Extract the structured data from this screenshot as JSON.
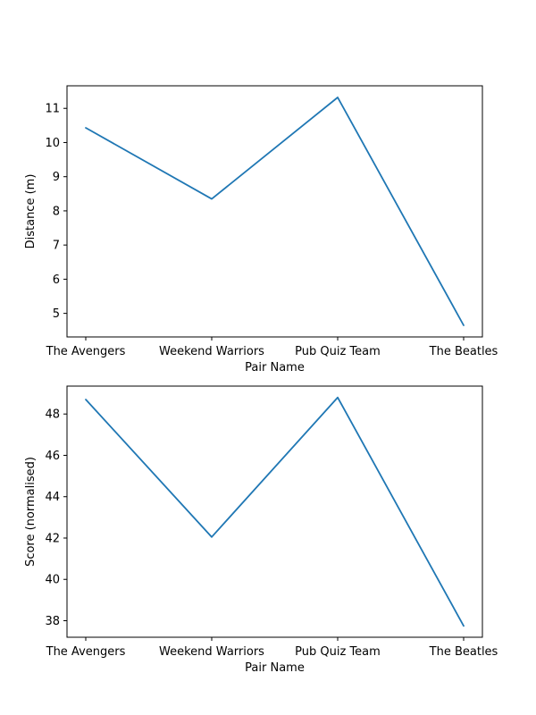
{
  "chart_data": [
    {
      "type": "line",
      "categories": [
        "The Avengers",
        "Weekend Warriors",
        "Pub Quiz Team",
        "The Beatles"
      ],
      "series": [
        {
          "values": [
            10.43,
            8.35,
            11.32,
            4.65
          ]
        }
      ],
      "xlabel": "Pair Name",
      "ylabel": "Distance (m)",
      "ylim": [
        4.31,
        11.66
      ],
      "yticks": [
        5,
        6,
        7,
        8,
        9,
        10,
        11
      ],
      "grid": false,
      "line_color": "#1f77b4"
    },
    {
      "type": "line",
      "categories": [
        "The Avengers",
        "Weekend Warriors",
        "Pub Quiz Team",
        "The Beatles"
      ],
      "series": [
        {
          "values": [
            48.7,
            42.05,
            48.8,
            37.75
          ]
        }
      ],
      "xlabel": "Pair Name",
      "ylabel": "Score (normalised)",
      "ylim": [
        37.2,
        49.35
      ],
      "yticks": [
        38,
        40,
        42,
        44,
        46,
        48
      ],
      "grid": false,
      "line_color": "#1f77b4"
    }
  ]
}
